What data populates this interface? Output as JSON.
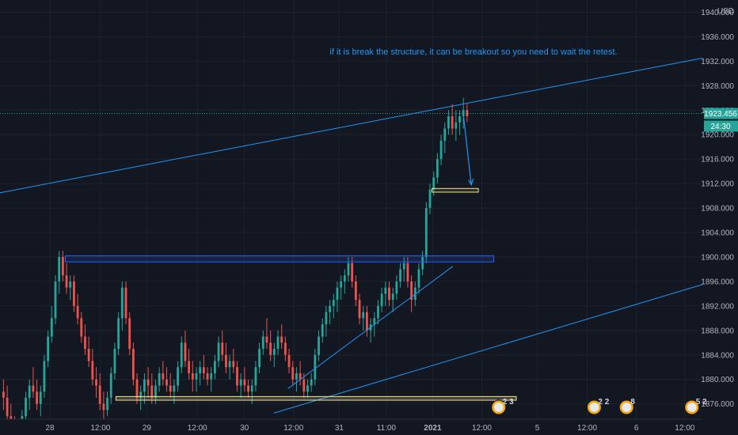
{
  "chart_data": {
    "type": "candlestick",
    "currency": "USD",
    "annotation": "if it is break the structure, it can be breakout so you need to wait the retest.",
    "current_price": "1923.456",
    "countdown": "24:30",
    "y_ticks": [
      "1940.000",
      "1936.000",
      "1932.000",
      "1928.000",
      "1924.000",
      "1920.000",
      "1916.000",
      "1912.000",
      "1908.000",
      "1904.000",
      "1900.000",
      "1896.000",
      "1892.000",
      "1888.000",
      "1884.000",
      "1880.000",
      "1876.000"
    ],
    "ylim": [
      1873.5,
      1942
    ],
    "x_ticks": [
      "28",
      "12:00",
      "29",
      "12:00",
      "30",
      "12:00",
      "31",
      "11:00",
      "2021",
      "12:00",
      "5",
      "12:00",
      "6",
      "12:00"
    ],
    "candles": [
      [
        1878,
        1880,
        1875,
        1877
      ],
      [
        1877,
        1879,
        1872,
        1874
      ],
      [
        1874,
        1876,
        1871,
        1873
      ],
      [
        1873,
        1874,
        1870,
        1871
      ],
      [
        1871,
        1873,
        1869,
        1872
      ],
      [
        1872,
        1875,
        1871,
        1874
      ],
      [
        1874,
        1878,
        1873,
        1877
      ],
      [
        1877,
        1880,
        1875,
        1879
      ],
      [
        1879,
        1882,
        1877,
        1878
      ],
      [
        1878,
        1880,
        1875,
        1876
      ],
      [
        1876,
        1879,
        1874,
        1878
      ],
      [
        1878,
        1884,
        1877,
        1883
      ],
      [
        1883,
        1888,
        1882,
        1887
      ],
      [
        1887,
        1892,
        1886,
        1890
      ],
      [
        1890,
        1897,
        1889,
        1896
      ],
      [
        1896,
        1901,
        1894,
        1900
      ],
      [
        1900,
        1901,
        1896,
        1897
      ],
      [
        1897,
        1899,
        1894,
        1895
      ],
      [
        1895,
        1897,
        1893,
        1896
      ],
      [
        1896,
        1897,
        1891,
        1892
      ],
      [
        1892,
        1894,
        1889,
        1890
      ],
      [
        1890,
        1891,
        1886,
        1887
      ],
      [
        1887,
        1889,
        1884,
        1885
      ],
      [
        1885,
        1887,
        1882,
        1883
      ],
      [
        1883,
        1885,
        1879,
        1880
      ],
      [
        1880,
        1882,
        1877,
        1879
      ],
      [
        1879,
        1881,
        1875,
        1876
      ],
      [
        1876,
        1878,
        1873,
        1875
      ],
      [
        1875,
        1878,
        1874,
        1877
      ],
      [
        1877,
        1882,
        1876,
        1881
      ],
      [
        1881,
        1886,
        1880,
        1885
      ],
      [
        1885,
        1891,
        1884,
        1890
      ],
      [
        1890,
        1896,
        1888,
        1895
      ],
      [
        1895,
        1896,
        1889,
        1890
      ],
      [
        1890,
        1891,
        1884,
        1885
      ],
      [
        1885,
        1886,
        1879,
        1880
      ],
      [
        1880,
        1881,
        1876,
        1877
      ],
      [
        1877,
        1879,
        1875,
        1878
      ],
      [
        1878,
        1881,
        1876,
        1880
      ],
      [
        1880,
        1882,
        1877,
        1879
      ],
      [
        1879,
        1881,
        1876,
        1877
      ],
      [
        1877,
        1880,
        1876,
        1879
      ],
      [
        1879,
        1882,
        1878,
        1881
      ],
      [
        1881,
        1883,
        1879,
        1880
      ],
      [
        1880,
        1882,
        1878,
        1879
      ],
      [
        1879,
        1881,
        1877,
        1878
      ],
      [
        1878,
        1880,
        1876,
        1879
      ],
      [
        1879,
        1883,
        1878,
        1882
      ],
      [
        1882,
        1887,
        1881,
        1886
      ],
      [
        1886,
        1888,
        1882,
        1883
      ],
      [
        1883,
        1885,
        1880,
        1881
      ],
      [
        1881,
        1883,
        1878,
        1880
      ],
      [
        1880,
        1882,
        1878,
        1881
      ],
      [
        1881,
        1883,
        1879,
        1882
      ],
      [
        1882,
        1884,
        1880,
        1881
      ],
      [
        1881,
        1882,
        1879,
        1880
      ],
      [
        1880,
        1882,
        1878,
        1881
      ],
      [
        1881,
        1884,
        1880,
        1883
      ],
      [
        1883,
        1887,
        1882,
        1886
      ],
      [
        1886,
        1888,
        1883,
        1884
      ],
      [
        1884,
        1886,
        1881,
        1882
      ],
      [
        1882,
        1884,
        1880,
        1883
      ],
      [
        1883,
        1885,
        1881,
        1882
      ],
      [
        1882,
        1883,
        1878,
        1879
      ],
      [
        1879,
        1881,
        1877,
        1880
      ],
      [
        1880,
        1882,
        1878,
        1879
      ],
      [
        1879,
        1880,
        1877,
        1878
      ],
      [
        1878,
        1880,
        1876,
        1879
      ],
      [
        1879,
        1883,
        1878,
        1882
      ],
      [
        1882,
        1886,
        1881,
        1885
      ],
      [
        1885,
        1888,
        1884,
        1887
      ],
      [
        1887,
        1890,
        1885,
        1886
      ],
      [
        1886,
        1888,
        1883,
        1884
      ],
      [
        1884,
        1886,
        1882,
        1885
      ],
      [
        1885,
        1888,
        1884,
        1887
      ],
      [
        1887,
        1889,
        1885,
        1886
      ],
      [
        1886,
        1887,
        1883,
        1884
      ],
      [
        1884,
        1885,
        1881,
        1882
      ],
      [
        1882,
        1883,
        1879,
        1880
      ],
      [
        1880,
        1882,
        1878,
        1881
      ],
      [
        1881,
        1883,
        1879,
        1880
      ],
      [
        1880,
        1881,
        1877,
        1878
      ],
      [
        1878,
        1880,
        1877,
        1879
      ],
      [
        1879,
        1881,
        1878,
        1880
      ],
      [
        1880,
        1885,
        1879,
        1884
      ],
      [
        1884,
        1888,
        1883,
        1887
      ],
      [
        1887,
        1890,
        1886,
        1889
      ],
      [
        1889,
        1892,
        1887,
        1891
      ],
      [
        1891,
        1893,
        1889,
        1892
      ],
      [
        1892,
        1894,
        1890,
        1893
      ],
      [
        1893,
        1896,
        1891,
        1895
      ],
      [
        1895,
        1897,
        1893,
        1896
      ],
      [
        1896,
        1898,
        1894,
        1897
      ],
      [
        1897,
        1900,
        1896,
        1899
      ],
      [
        1899,
        1900,
        1895,
        1896
      ],
      [
        1896,
        1897,
        1892,
        1893
      ],
      [
        1893,
        1894,
        1889,
        1890
      ],
      [
        1890,
        1892,
        1888,
        1891
      ],
      [
        1891,
        1892,
        1887,
        1888
      ],
      [
        1888,
        1890,
        1886,
        1889
      ],
      [
        1889,
        1891,
        1887,
        1890
      ],
      [
        1890,
        1893,
        1889,
        1892
      ],
      [
        1892,
        1895,
        1891,
        1894
      ],
      [
        1894,
        1896,
        1892,
        1895
      ],
      [
        1895,
        1896,
        1892,
        1893
      ],
      [
        1893,
        1895,
        1891,
        1894
      ],
      [
        1894,
        1897,
        1893,
        1896
      ],
      [
        1896,
        1899,
        1895,
        1898
      ],
      [
        1898,
        1900,
        1896,
        1899
      ],
      [
        1899,
        1900,
        1895,
        1896
      ],
      [
        1896,
        1897,
        1891,
        1893
      ],
      [
        1893,
        1896,
        1892,
        1895
      ],
      [
        1895,
        1899,
        1894,
        1898
      ],
      [
        1898,
        1901,
        1897,
        1900
      ],
      [
        1900,
        1909,
        1899,
        1908
      ],
      [
        1908,
        1912,
        1907,
        1911
      ],
      [
        1911,
        1914,
        1910,
        1913
      ],
      [
        1913,
        1917,
        1912,
        1916
      ],
      [
        1916,
        1920,
        1915,
        1919
      ],
      [
        1919,
        1922,
        1917,
        1921
      ],
      [
        1921,
        1924,
        1920,
        1923
      ],
      [
        1923,
        1925,
        1920,
        1921
      ],
      [
        1921,
        1924,
        1919,
        1922
      ],
      [
        1922,
        1924,
        1920,
        1923
      ],
      [
        1923,
        1926,
        1921,
        1924
      ],
      [
        1924,
        1925,
        1922,
        1923
      ]
    ],
    "annotations_shapes": [
      {
        "kind": "channel_line",
        "from": [
          0,
          1910.5
        ],
        "to": [
          1,
          1932.5
        ]
      },
      {
        "kind": "channel_line",
        "from": [
          0.39,
          1874.5
        ],
        "to": [
          1,
          1895.5
        ]
      },
      {
        "kind": "trendline",
        "from": [
          0.41,
          1878.5
        ],
        "to": [
          0.645,
          1898.5
        ]
      },
      {
        "kind": "resistance_zone",
        "from": [
          1900.2,
          1899.2
        ]
      },
      {
        "kind": "support_zone",
        "from": [
          1877.2,
          1876.6
        ]
      },
      {
        "kind": "retest_zone",
        "from": [
          1911.2,
          1910.6
        ]
      }
    ],
    "badges": [
      {
        "text": "2 3"
      },
      {
        "text": "2 2"
      },
      {
        "text": "8"
      },
      {
        "text": "5 2"
      }
    ]
  },
  "colors": {
    "background": "#131722",
    "up": "#26a69a",
    "down": "#ef5350",
    "annotation": "#2196f3",
    "zone_border": "#2962ff",
    "zone_yellow": "#f0e68c",
    "grid": "#1e222d",
    "price_tag": "#26a69a"
  }
}
